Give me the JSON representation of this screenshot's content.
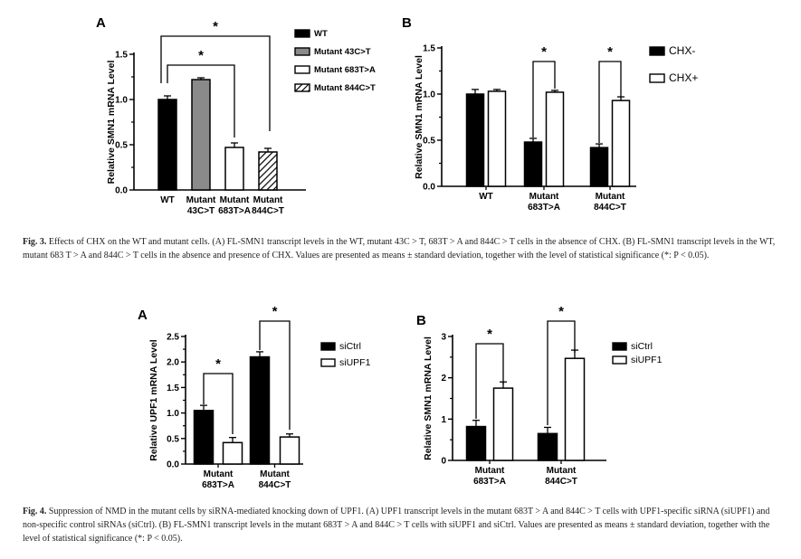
{
  "chart_data": [
    {
      "panel": "A",
      "type": "bar",
      "ylabel": "Relative SMN1 mRNA Level",
      "ylim": [
        0,
        1.5
      ],
      "yticks": [
        "0.0",
        "0.5",
        "1.0",
        "1.5"
      ],
      "categories": [
        [
          "WT"
        ],
        [
          "Mutant",
          "43C>T"
        ],
        [
          "Mutant",
          "683T>A"
        ],
        [
          "Mutant",
          "844C>T"
        ]
      ],
      "values": [
        1.0,
        1.22,
        0.47,
        0.42
      ],
      "errors": [
        0.04,
        0.02,
        0.05,
        0.04
      ],
      "legend": [
        "WT",
        "Mutant 43C>T",
        "Mutant 683T>A",
        "Mutant 844C>T"
      ],
      "significance": [
        "*",
        "*"
      ]
    },
    {
      "panel": "B",
      "type": "bar",
      "ylabel": "Relative SMN1 mRNA Level",
      "ylim": [
        0,
        1.5
      ],
      "yticks": [
        "0.0",
        "0.5",
        "1.0",
        "1.5"
      ],
      "categories": [
        [
          "WT"
        ],
        [
          "Mutant",
          "683T>A"
        ],
        [
          "Mutant",
          "844C>T"
        ]
      ],
      "series": [
        {
          "name": "CHX-",
          "values": [
            1.0,
            0.48,
            0.42
          ],
          "errors": [
            0.05,
            0.04,
            0.04
          ]
        },
        {
          "name": "CHX+",
          "values": [
            1.03,
            1.02,
            0.93
          ],
          "errors": [
            0.02,
            0.02,
            0.04
          ]
        }
      ],
      "significance": [
        "*",
        "*"
      ]
    },
    {
      "panel": "A",
      "type": "bar",
      "ylabel": "Relative UPF1 mRNA Level",
      "ylim": [
        0,
        2.5
      ],
      "yticks": [
        "0.0",
        "0.5",
        "1.0",
        "1.5",
        "2.0",
        "2.5"
      ],
      "categories": [
        [
          "Mutant",
          "683T>A"
        ],
        [
          "Mutant",
          "844C>T"
        ]
      ],
      "series": [
        {
          "name": "siCtrl",
          "values": [
            1.05,
            2.1
          ],
          "errors": [
            0.1,
            0.1
          ]
        },
        {
          "name": "siUPF1",
          "values": [
            0.42,
            0.53
          ],
          "errors": [
            0.1,
            0.06
          ]
        }
      ],
      "significance": [
        "*",
        "*"
      ]
    },
    {
      "panel": "B",
      "type": "bar",
      "ylabel": "Relative SMN1 mRNA Level",
      "ylim": [
        0,
        3
      ],
      "yticks": [
        "0",
        "1",
        "2",
        "3"
      ],
      "categories": [
        [
          "Mutant",
          "683T>A"
        ],
        [
          "Mutant",
          "844C>T"
        ]
      ],
      "series": [
        {
          "name": "siCtrl",
          "values": [
            0.82,
            0.65
          ],
          "errors": [
            0.15,
            0.15
          ]
        },
        {
          "name": "siUPF1",
          "values": [
            1.75,
            2.47
          ],
          "errors": [
            0.15,
            0.2
          ]
        }
      ],
      "significance": [
        "*",
        "*"
      ]
    }
  ],
  "captions": {
    "fig3": {
      "label": "Fig. 3.",
      "text": " Effects of CHX on the WT and mutant cells. (A) FL-SMN1 transcript levels in the WT, mutant 43C > T, 683T > A and 844C > T cells in the absence of CHX. (B) FL-SMN1 transcript levels in the WT, mutant 683 T > A and 844C > T cells in the absence and presence of CHX. Values are presented as means ± standard deviation, together with the level of statistical significance (*: P < 0.05)."
    },
    "fig4": {
      "label": "Fig. 4.",
      "text": " Suppression of NMD in the mutant cells by siRNA-mediated knocking down of UPF1. (A) UPF1 transcript levels in the mutant 683T > A and 844C > T cells with UPF1-specific siRNA (siUPF1) and non-specific control siRNAs (siCtrl). (B) FL-SMN1 transcript levels in the mutant 683T > A and 844C > T cells with siUPF1 and siCtrl. Values are presented as means ± standard deviation, together with the level of statistical significance (*: P < 0.05)."
    }
  }
}
